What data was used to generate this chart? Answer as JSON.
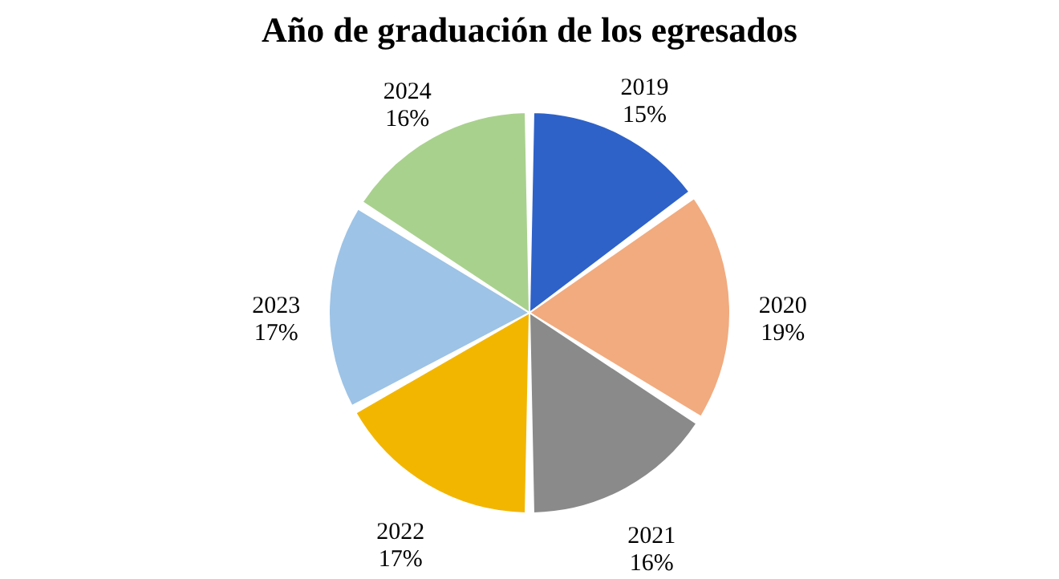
{
  "chart_data": {
    "type": "pie",
    "title": "Año de graduación de los egresados",
    "categories": [
      "2019",
      "2020",
      "2021",
      "2022",
      "2023",
      "2024"
    ],
    "values": [
      15,
      19,
      16,
      17,
      17,
      16
    ],
    "value_labels": [
      "15%",
      "19%",
      "16%",
      "17%",
      "17%",
      "16%"
    ],
    "colors": [
      "#2e62c9",
      "#f1ab7f",
      "#8a8a8a",
      "#f2b600",
      "#9dc3e6",
      "#a9d18e"
    ],
    "legend": false
  }
}
